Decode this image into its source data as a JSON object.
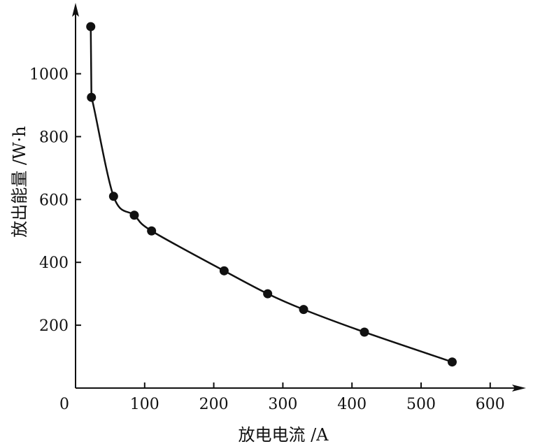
{
  "chart_data": {
    "type": "scatter",
    "xlabel": "放电电流 /A",
    "ylabel": "放出能量 /W·h",
    "origin_label": "0",
    "xlim": [
      0,
      620
    ],
    "ylim": [
      0,
      1180
    ],
    "x_ticks": [
      100,
      200,
      300,
      400,
      500,
      600
    ],
    "x_tick_labels": [
      "100",
      "200",
      "300",
      "400",
      "500",
      "600"
    ],
    "y_ticks": [
      200,
      400,
      600,
      800,
      1000
    ],
    "y_tick_labels": [
      "200",
      "400",
      "600",
      "800",
      "1000"
    ],
    "grid": false,
    "legend": "none",
    "color": "#111111",
    "series": [
      {
        "points": [
          {
            "x": 22,
            "y": 1150
          },
          {
            "x": 23,
            "y": 925
          },
          {
            "x": 55,
            "y": 610
          },
          {
            "x": 85,
            "y": 550
          },
          {
            "x": 110,
            "y": 500
          },
          {
            "x": 215,
            "y": 373
          },
          {
            "x": 278,
            "y": 300
          },
          {
            "x": 330,
            "y": 250
          },
          {
            "x": 418,
            "y": 178
          },
          {
            "x": 545,
            "y": 83
          }
        ]
      }
    ]
  }
}
